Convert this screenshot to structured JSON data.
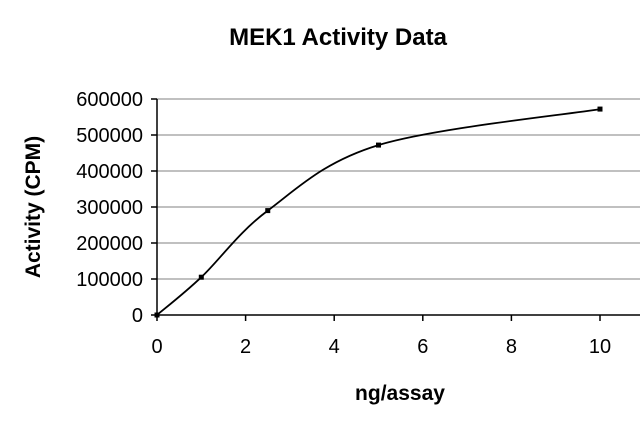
{
  "chart_data": {
    "type": "line",
    "title": "MEK1 Activity Data",
    "xlabel": "ng/assay",
    "ylabel": "Activity (CPM)",
    "xlim": [
      0,
      10
    ],
    "ylim": [
      0,
      600000
    ],
    "x_ticks": [
      0,
      2,
      4,
      6,
      8,
      10
    ],
    "y_ticks": [
      0,
      100000,
      200000,
      300000,
      400000,
      500000,
      600000
    ],
    "grid": "horizontal",
    "legend": "none",
    "series": [
      {
        "x": [
          0,
          1,
          2.5,
          5,
          10
        ],
        "y": [
          0,
          105000,
          290000,
          472000,
          572000
        ]
      }
    ],
    "colors": {
      "line": "#000000",
      "grid": "#9a9a9a"
    }
  }
}
